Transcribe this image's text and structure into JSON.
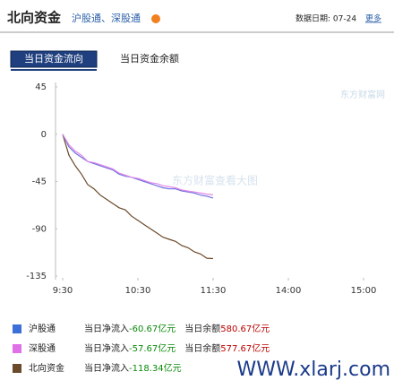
{
  "header": {
    "title": "北向资金",
    "subtitle": "沪股通、深股通",
    "date_label": "数据日期: 07-24",
    "more": "更多"
  },
  "tabs": [
    "当日资金流向",
    "当日资金余额"
  ],
  "watermarks": [
    "东方财富网",
    "东方财富查看大图",
    "WWW.xlarj.com"
  ],
  "chart_data": {
    "type": "line",
    "x": [
      0,
      5,
      10,
      15,
      20,
      25,
      30,
      35,
      40,
      45,
      50,
      55,
      60,
      65,
      70,
      75,
      80,
      85,
      90,
      95,
      100,
      105,
      110,
      115,
      120
    ],
    "xlim": [
      0,
      240
    ],
    "xticks": [
      {
        "value": 0,
        "label": "9:30"
      },
      {
        "value": 60,
        "label": "10:30"
      },
      {
        "value": 120,
        "label": "11:30"
      },
      {
        "value": 180,
        "label": "14:00"
      },
      {
        "value": 240,
        "label": "15:00"
      }
    ],
    "ylim": [
      -135,
      45
    ],
    "yticks": [
      45,
      0,
      -45,
      -90,
      -135
    ],
    "series": [
      {
        "name": "沪股通",
        "color": "#7070e0",
        "legend_color": "#3c6fd8",
        "values": [
          0,
          -12,
          -18,
          -22,
          -26,
          -28,
          -30,
          -32,
          -34,
          -38,
          -40,
          -41,
          -43,
          -45,
          -47,
          -49,
          -51,
          -52,
          -52,
          -54,
          -55,
          -56,
          -58,
          -59,
          -60.67
        ],
        "summary": [
          "当日净流入",
          "-60.67亿元",
          "当日余额",
          "580.67亿元"
        ]
      },
      {
        "name": "深股通",
        "color": "#e088ea",
        "legend_color": "#e070e8",
        "values": [
          0,
          -10,
          -16,
          -20,
          -26,
          -27,
          -29,
          -31,
          -33,
          -37,
          -39,
          -41,
          -42,
          -44,
          -46,
          -47,
          -49,
          -50,
          -51,
          -53,
          -54,
          -55,
          -56,
          -57,
          -57.67
        ],
        "summary": [
          "当日净流入",
          "-57.67亿元",
          "当日余额",
          "577.67亿元"
        ]
      },
      {
        "name": "北向资金",
        "color": "#6b4a2b",
        "legend_color": "#6b4a2b",
        "values": [
          0,
          -20,
          -30,
          -38,
          -48,
          -52,
          -58,
          -62,
          -66,
          -70,
          -72,
          -78,
          -82,
          -86,
          -90,
          -94,
          -98,
          -100,
          -102,
          -106,
          -108,
          -112,
          -114,
          -118,
          -118.34
        ],
        "summary": [
          "当日净流入",
          "-118.34亿元"
        ]
      }
    ]
  }
}
